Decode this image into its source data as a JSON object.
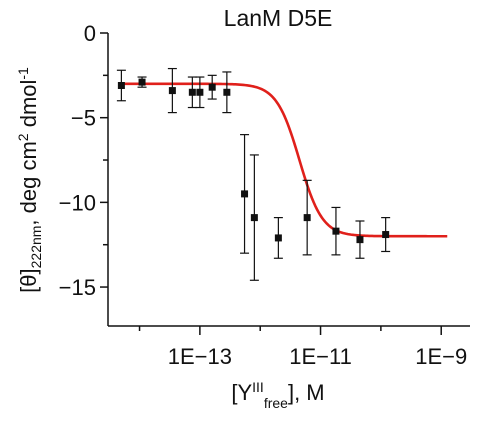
{
  "chart_data": {
    "type": "scatter",
    "title": "LanM D5E",
    "xlabel": {
      "prefix": "[Y",
      "sup": "III",
      "sub": "free",
      "suffix": "], M"
    },
    "ylabel": {
      "prefix": "[θ]",
      "sub": "222nm",
      "mid": ", deg cm",
      "sup1": "2",
      "mid2": " dmol",
      "sup2": "-1"
    },
    "x_scale": "log",
    "xlim": [
      3e-15,
      3e-09
    ],
    "ylim": [
      -17.3,
      0
    ],
    "x_ticks": [
      1e-13,
      1e-11,
      1e-09
    ],
    "x_tick_labels": [
      "1E−13",
      "1E−11",
      "1E−9"
    ],
    "y_ticks": [
      0,
      -5,
      -10,
      -15
    ],
    "y_tick_labels": [
      "0",
      "−5",
      "−10",
      "−15"
    ],
    "grid": false,
    "series": [
      {
        "values_x": [
          5e-15,
          1.1e-14,
          3.5e-14,
          7.5e-14,
          1e-13,
          1.6e-13,
          2.8e-13,
          5.5e-13,
          8e-13,
          2e-12,
          6e-12,
          1.8e-11,
          4.5e-11
        ],
        "values_y": [
          -3.1,
          -2.9,
          -3.4,
          -3.5,
          -3.5,
          -3.2,
          -3.5,
          -9.5,
          -10.9,
          -12.1,
          -10.9,
          -11.7,
          -12.2
        ],
        "y_err": [
          0.9,
          0.3,
          1.3,
          0.9,
          0.9,
          0.7,
          1.2,
          3.5,
          3.7,
          1.2,
          2.2,
          1.4,
          1.1
        ],
        "extra_x": [
          1.2e-10
        ],
        "extra_y": [
          -11.9
        ],
        "extra_err": [
          1.0
        ]
      }
    ],
    "fit": {
      "top": -3.0,
      "bottom": -12.0,
      "log_midpoint": -11.35,
      "hill_slope": 2.3
    },
    "colors": {
      "points": "#111111",
      "fit": "#e0201b",
      "axes": "#111111"
    }
  }
}
